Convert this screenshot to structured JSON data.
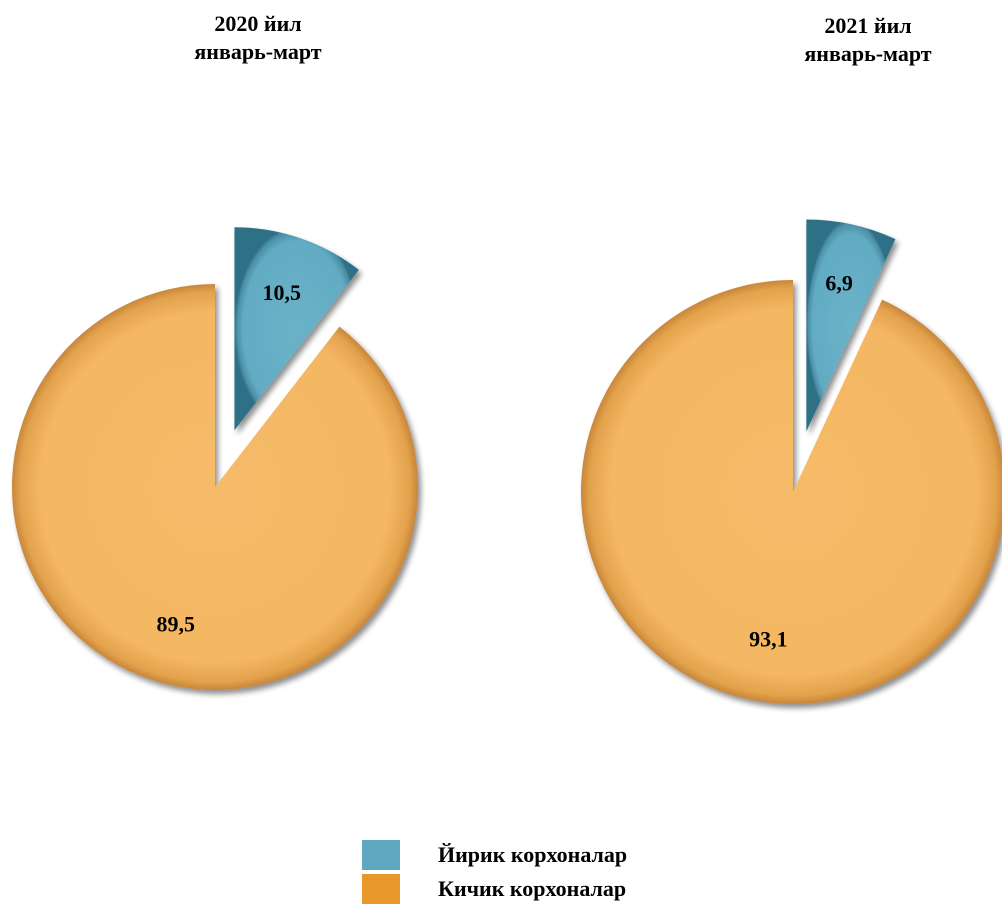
{
  "chart_data": [
    {
      "type": "pie",
      "title_lines": [
        "2020 йил",
        "январь-март"
      ],
      "slices": [
        {
          "name": "Йирик корхоналар",
          "value": 10.5,
          "label": "10,5"
        },
        {
          "name": "Кичик корхоналар",
          "value": 89.5,
          "label": "89,5"
        }
      ]
    },
    {
      "type": "pie",
      "title_lines": [
        "2021 йил",
        "январь-март"
      ],
      "slices": [
        {
          "name": "Йирик корхоналар",
          "value": 6.9,
          "label": "6,9"
        },
        {
          "name": "Кичик корхоналар",
          "value": 93.1,
          "label": "93,1"
        }
      ]
    }
  ],
  "legend": [
    {
      "label": "Йирик корхоналар",
      "color": "#5fa9c0"
    },
    {
      "label": "Кичик корхоналар",
      "color": "#e8982a"
    }
  ],
  "colors": {
    "large_slice": "#64adc4",
    "small_slice": "#f4b865"
  }
}
